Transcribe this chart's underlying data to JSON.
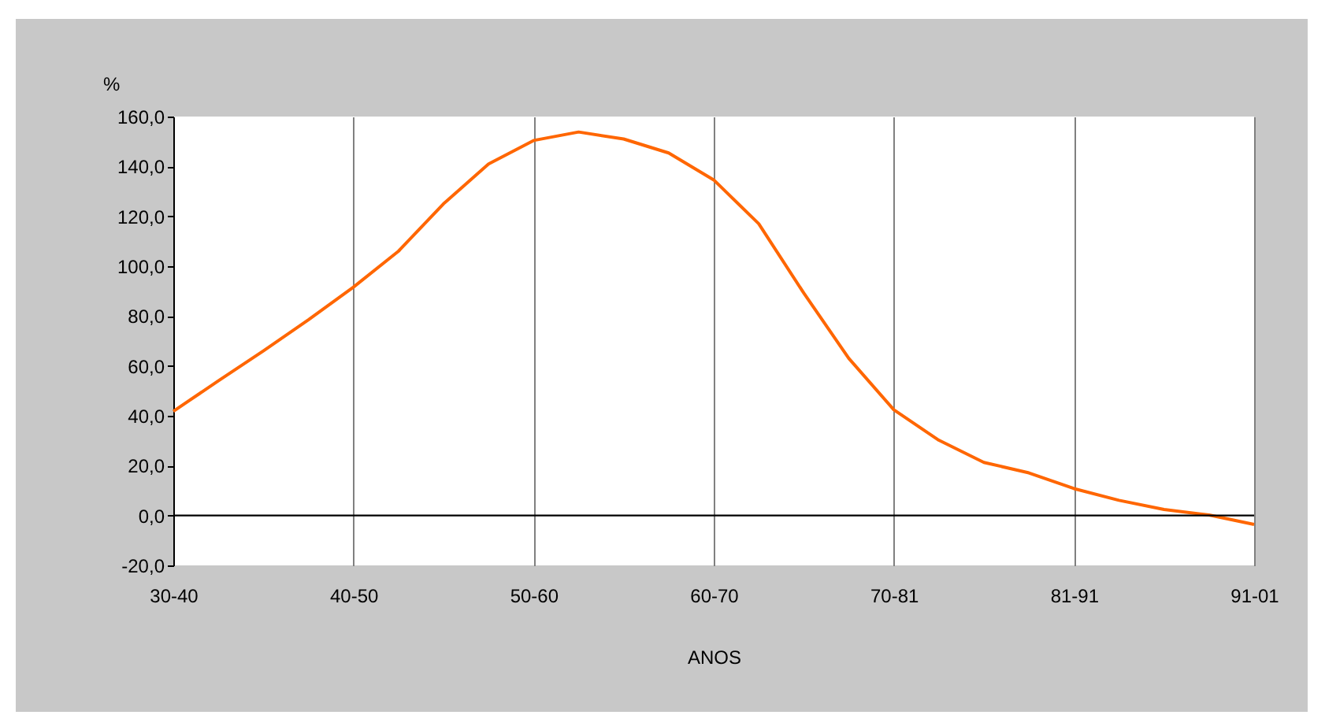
{
  "chart_data": {
    "type": "line",
    "xlabel": "ANOS",
    "ylabel": "%",
    "categories": [
      "30-40",
      null,
      null,
      null,
      "40-50",
      null,
      null,
      null,
      "50-60",
      null,
      null,
      null,
      "60-70",
      null,
      null,
      null,
      "70-81",
      null,
      null,
      null,
      "81-91",
      null,
      null,
      null,
      "91-01"
    ],
    "series": [
      {
        "color": "#ff6600",
        "values": [
          41.8,
          54,
          66,
          78.5,
          91.6,
          106,
          125,
          141,
          150.4,
          153.8,
          151,
          145.4,
          134.6,
          117,
          89.2,
          63,
          42.4,
          30.2,
          21.3,
          17.1,
          10.8,
          6.1,
          2.4,
          0.2,
          -3.6
        ]
      }
    ],
    "ylim": [
      -20,
      160
    ],
    "yticks": [
      {
        "value": -20,
        "label": "-20,0"
      },
      {
        "value": 0,
        "label": "0,0"
      },
      {
        "value": 20,
        "label": "20,0"
      },
      {
        "value": 40,
        "label": "40,0"
      },
      {
        "value": 60,
        "label": "60,0"
      },
      {
        "value": 80,
        "label": "80,0"
      },
      {
        "value": 100,
        "label": "100,0"
      },
      {
        "value": 120,
        "label": "120,0"
      },
      {
        "value": 140,
        "label": "140,0"
      },
      {
        "value": 160,
        "label": "160,0"
      }
    ],
    "ref_lines": [
      {
        "axis": "y",
        "value": 0,
        "color": "#000000"
      }
    ],
    "grid": "x",
    "legend": false,
    "marker": "none",
    "line_style": "solid"
  }
}
